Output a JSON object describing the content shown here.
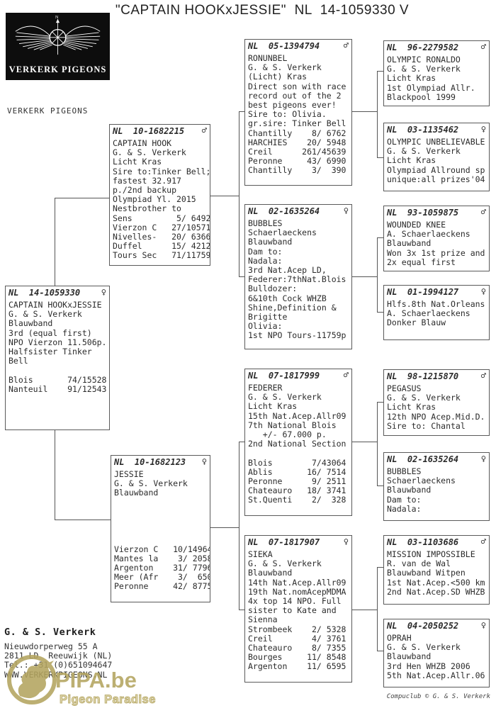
{
  "title": "\"CAPTAIN HOOKxJESSIE\"  NL  14-1059330 V",
  "logo": {
    "text": "VERKERK PIGEONS"
  },
  "breeder_label": "VERKERK PIGEONS",
  "boxes": [
    {
      "id": "captain-hook-x-jessie",
      "ring": "NL  14-1059330",
      "sex": "♀",
      "lines": [
        "CAPTAIN HOOKxJESSIE",
        "G. & S. Verkerk",
        "Blauwband",
        "3rd (equal first)",
        "NPO Vierzon 11.506p.",
        "Halfsister Tinker",
        "Bell",
        "",
        "Blois       74/15528",
        "Nanteuil    91/12543"
      ]
    },
    {
      "id": "captain-hook",
      "ring": "NL  10-1682215",
      "sex": "♂",
      "lines": [
        "CAPTAIN HOOK",
        "G. & S. Verkerk",
        "Licht Kras",
        "Sire to:Tinker Bell;",
        "fastest 32.917",
        "p./2nd backup",
        "Olympiad Yl. 2015",
        "Nestbrother to",
        "Sens         5/ 6492",
        "Vierzon C   27/10571",
        "Nivelles-   20/ 6366",
        "Duffel      15/ 4212",
        "Tours Sec   71/11759"
      ]
    },
    {
      "id": "jessie",
      "ring": "NL  10-1682123",
      "sex": "♀",
      "lines": [
        "JESSIE",
        "G. & S. Verkerk",
        "Blauwband",
        "",
        "",
        "",
        "",
        "",
        "Vierzon C   10/14964",
        "Mantes la    3/ 2058",
        "Argenton    31/ 7796",
        "Meer (Afr    3/  650",
        "Peronne     42/ 8775"
      ]
    },
    {
      "id": "ronunbel",
      "ring": "NL  05-1394794",
      "sex": "♂",
      "lines": [
        "RONUNBEL",
        "G. & S. Verkerk",
        "(Licht) Kras",
        "Direct son with race",
        "record out of the 2",
        "best pigeons ever!",
        "Sire to: Olivia.",
        "gr.sire: Tinker Bell",
        "Chantilly    8/ 6762",
        "HARCHIES    20/ 5948",
        "Creil      261/45639",
        "Peronne     43/ 6990",
        "Chantilly    3/  390"
      ]
    },
    {
      "id": "bubbles",
      "ring": "NL  02-1635264",
      "sex": "♀",
      "lines": [
        "BUBBLES",
        "Schaerlaeckens",
        "Blauwband",
        "Dam to:",
        "Nadala:",
        "3rd Nat.Acep LD,",
        "Federer:7thNat.Blois",
        "Bulldozer:",
        "6&10th Cock WHZB",
        "Shine,Definition &",
        "Brigitte",
        "Olivia:",
        "1st NPO Tours-11759p"
      ]
    },
    {
      "id": "federer",
      "ring": "NL  07-1817999",
      "sex": "♂",
      "lines": [
        "FEDERER",
        "G. & S. Verkerk",
        "Licht Kras",
        "15th Nat.Acep.Allr09",
        "7th National Blois",
        "   +/- 67.000 p.",
        "2nd National Section",
        "",
        "Blois        7/43064",
        "Ablis       16/ 7514",
        "Peronne      9/ 2511",
        "Chateauro   18/ 3741",
        "St.Quenti    2/  328"
      ]
    },
    {
      "id": "sieka",
      "ring": "NL  07-1817907",
      "sex": "♀",
      "lines": [
        "SIEKA",
        "G. & S. Verkerk",
        "Blauwband",
        "14th Nat.Acep.Allr09",
        "19th Nat.nomAcepMDMA",
        "4x top 14 NPO. Full",
        "sister to Kate and",
        "Sienna",
        "Strombeek    2/ 5328",
        "Creil        4/ 3761",
        "Chateauro    8/ 7355",
        "Bourges     11/ 8548",
        "Argenton    11/ 6595"
      ]
    },
    {
      "id": "olympic-ronaldo",
      "ring": "NL  96-2279582",
      "sex": "♂",
      "lines": [
        "OLYMPIC RONALDO",
        "G. & S. Verkerk",
        "Licht Kras",
        "1st Olympiad Allr.",
        "Blackpool 1999"
      ]
    },
    {
      "id": "olympic-unbelievable",
      "ring": "NL  03-1135462",
      "sex": "♀",
      "lines": [
        "OLYMPIC UNBELIEVABLE",
        "G. & S. Verkerk",
        "Licht Kras",
        "Olympiad Allround sp",
        "unique:all prizes'04"
      ]
    },
    {
      "id": "wounded-knee",
      "ring": "NL  93-1059875",
      "sex": "♂",
      "lines": [
        "WOUNDED KNEE",
        "A. Schaerlaeckens",
        "Blauwband",
        "Won 3x 1st prize and",
        "2x equal first"
      ]
    },
    {
      "id": "hlfs-orleans",
      "ring": "NL  01-1994127",
      "sex": "♀",
      "lines": [
        "Hlfs.8th Nat.Orleans",
        "A. Schaerlaeckens",
        "Donker Blauw"
      ]
    },
    {
      "id": "pegasus",
      "ring": "NL  98-1215870",
      "sex": "♂",
      "lines": [
        "PEGASUS",
        "G. & S. Verkerk",
        "Licht Kras",
        "12th NPO Acep.Mid.D.",
        "Sire to: Chantal"
      ]
    },
    {
      "id": "bubbles-2",
      "ring": "NL  02-1635264",
      "sex": "♀",
      "lines": [
        "BUBBLES",
        "Schaerlaeckens",
        "Blauwband",
        "Dam to:",
        "Nadala:"
      ]
    },
    {
      "id": "mission-impossible",
      "ring": "NL  03-1103686",
      "sex": "♂",
      "lines": [
        "MISSION IMPOSSIBLE",
        "R. van de Wal",
        "Blauwband Witpen",
        "1st Nat.Acep.<500 km",
        "2nd Nat.Acep.SD WHZB"
      ]
    },
    {
      "id": "oprah",
      "ring": "NL  04-2050252",
      "sex": "♀",
      "lines": [
        "OPRAH",
        "G. & S. Verkerk",
        "Blauwband",
        "3rd Hen WHZB 2006",
        "5th Nat.Acep.Allr.06"
      ]
    }
  ],
  "footer": {
    "name": "G. & S. Verkerk",
    "address_lines": [
      "Nieuwdorperweg 55 A",
      "2811 LD  Reeuwijk (NL)",
      "Tel.: +31 (0)651094647",
      "WWW.VERKERKPIGEONS.NL"
    ],
    "credit": "Compuclub © G. & S. Verkerk"
  },
  "watermark": {
    "main": "PIPA.be",
    "sub": "Pigeon Paradise",
    "color": "#b3a45f"
  }
}
